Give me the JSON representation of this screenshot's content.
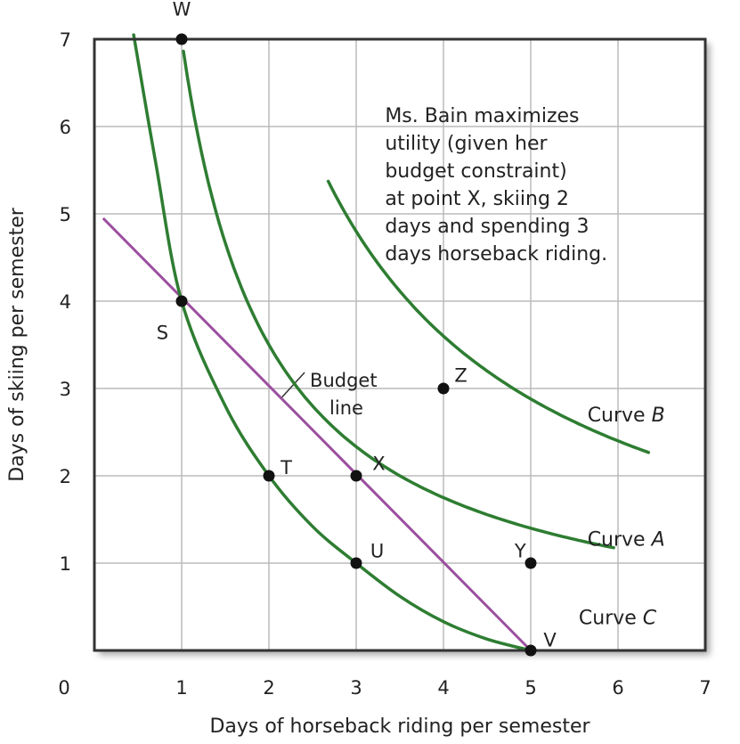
{
  "chart_data": {
    "type": "line",
    "title": "",
    "xlabel": "Days of horseback riding per semester",
    "ylabel": "Days of skiing per semester",
    "xlim": [
      0,
      7
    ],
    "ylim": [
      0,
      7
    ],
    "x_ticks": [
      0,
      1,
      2,
      3,
      4,
      5,
      6,
      7
    ],
    "y_ticks": [
      1,
      2,
      3,
      4,
      5,
      6,
      7
    ],
    "grid": true,
    "colors": {
      "curves": "#2e7d32",
      "budget": "#9b4f9f",
      "grid": "#bbbbbb",
      "frame": "#333333",
      "point": "#111111"
    },
    "series": [
      {
        "name": "Curve B",
        "name_main": "Curve ",
        "name_italic": "B",
        "kind": "indifference",
        "k": 14.4,
        "x_start": 2.68,
        "x_end": 6.35,
        "label_x": 5.65,
        "label_y": 2.62
      },
      {
        "name": "Curve A",
        "name_main": "Curve ",
        "name_italic": "A",
        "kind": "indifference",
        "k": 7.0,
        "x_start": 1.02,
        "x_end": 5.95,
        "label_x": 5.65,
        "label_y": 1.2
      },
      {
        "name": "Curve C",
        "name_main": "Curve ",
        "name_italic": "C",
        "kind": "through",
        "points": [
          [
            0.45,
            7.05
          ],
          [
            0.7,
            5.6
          ],
          [
            1.0,
            4.0
          ],
          [
            1.5,
            2.8
          ],
          [
            2.0,
            2.0
          ],
          [
            2.5,
            1.42
          ],
          [
            3.0,
            1.0
          ],
          [
            3.5,
            0.62
          ],
          [
            4.0,
            0.33
          ],
          [
            4.5,
            0.13
          ],
          [
            5.0,
            0.0
          ]
        ],
        "label_x": 5.55,
        "label_y": 0.3
      }
    ],
    "budget_line": {
      "label": [
        "Budget",
        "line"
      ],
      "points": [
        [
          0.1,
          4.95
        ],
        [
          5.0,
          0.0
        ]
      ],
      "label_x": 2.47,
      "label_y": 3.0,
      "leader_from": [
        2.47,
        3.0
      ],
      "leader_to": [
        2.15,
        2.9
      ]
    },
    "points": [
      {
        "label": "W",
        "x": 1,
        "y": 7,
        "lx": 1.0,
        "ly": 7.35
      },
      {
        "label": "S",
        "x": 1,
        "y": 4,
        "lx": 0.78,
        "ly": 3.65
      },
      {
        "label": "T",
        "x": 2,
        "y": 2,
        "lx": 2.2,
        "ly": 2.1
      },
      {
        "label": "X",
        "x": 3,
        "y": 2,
        "lx": 3.26,
        "ly": 2.15
      },
      {
        "label": "U",
        "x": 3,
        "y": 1,
        "lx": 3.24,
        "ly": 1.15
      },
      {
        "label": "Z",
        "x": 4,
        "y": 3,
        "lx": 4.2,
        "ly": 3.16
      },
      {
        "label": "Y",
        "x": 5,
        "y": 1,
        "lx": 4.88,
        "ly": 1.15
      },
      {
        "label": "V",
        "x": 5,
        "y": 0,
        "lx": 5.22,
        "ly": 0.13
      }
    ],
    "annotation": {
      "lines": [
        "Ms. Bain maximizes",
        "utility (given her",
        "budget constraint)",
        "at point X, skiing 2",
        "days and spending 3",
        "days horseback riding."
      ],
      "x": 3.33,
      "y": 6.05
    }
  }
}
